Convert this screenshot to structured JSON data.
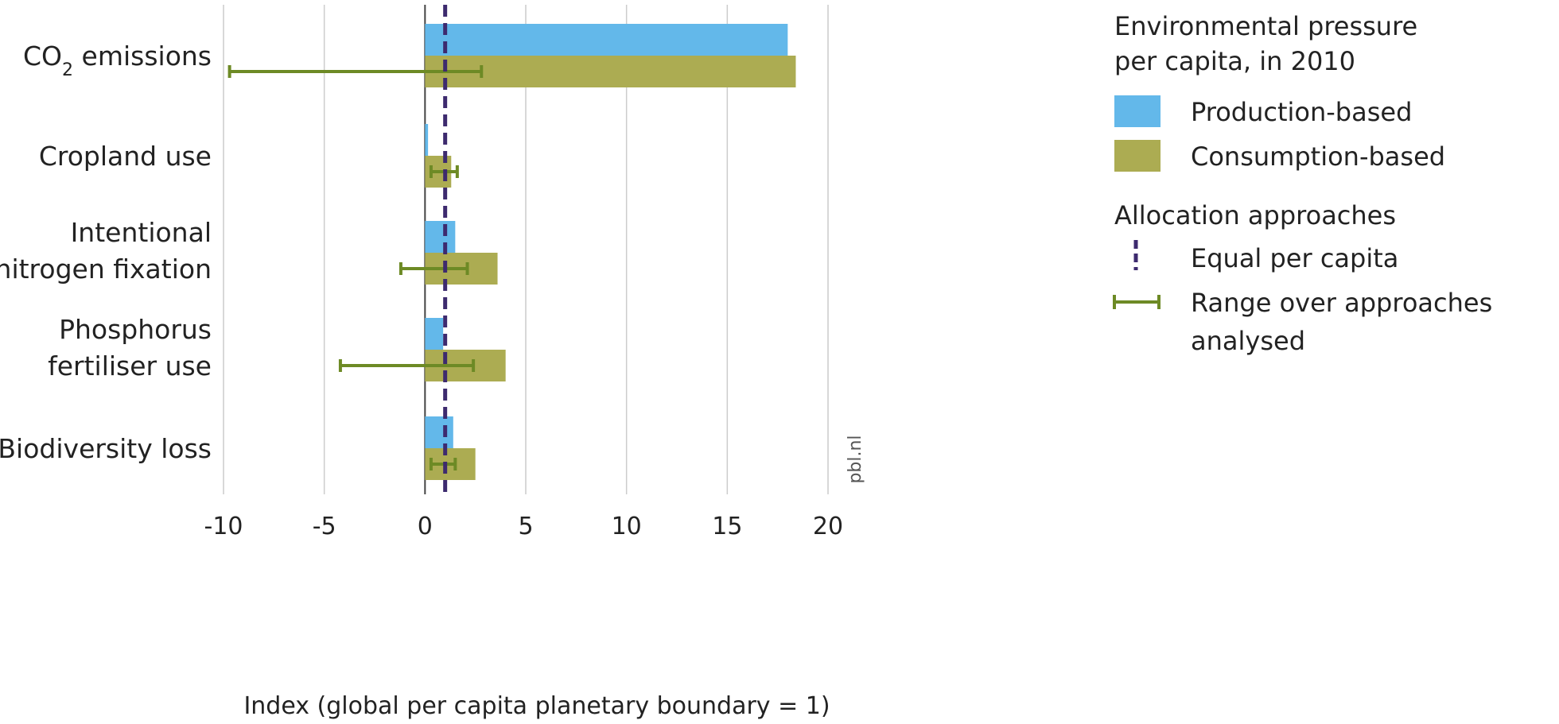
{
  "chart_data": {
    "type": "bar",
    "orientation": "horizontal",
    "categories": [
      [
        "CO",
        "2",
        " emissions"
      ],
      [
        "Cropland use"
      ],
      [
        "Intentional",
        "nitrogen fixation"
      ],
      [
        "Phosphorus",
        "fertiliser use"
      ],
      [
        "Biodiversity loss"
      ]
    ],
    "category_layout": [
      "subscript",
      "single",
      "multi",
      "multi",
      "single"
    ],
    "series": [
      {
        "name": "Production-based",
        "values": [
          18.0,
          0.15,
          1.5,
          0.9,
          1.4
        ]
      },
      {
        "name": "Consumption-based",
        "values": [
          18.4,
          1.3,
          3.6,
          4.0,
          2.5
        ]
      }
    ],
    "ranges": {
      "name": "Range over approaches analysed",
      "values": [
        [
          -9.7,
          2.8
        ],
        [
          0.3,
          1.6
        ],
        [
          -1.2,
          2.1
        ],
        [
          -4.2,
          2.4
        ],
        [
          0.3,
          1.5
        ]
      ]
    },
    "reference_line": {
      "name": "Equal per capita",
      "value": 1
    },
    "xlim": [
      -10,
      20
    ],
    "xticks": [
      -10,
      -5,
      0,
      5,
      10,
      15,
      20
    ],
    "tick_labels": [
      "-10",
      "-5",
      "0",
      "5",
      "10",
      "15",
      "20"
    ],
    "xlabel": "Index (global per capita planetary boundary = 1)",
    "grid": "vertical",
    "legend": {
      "placement": "right",
      "title": [
        "Environmental pressure",
        "per capita, in 2010"
      ],
      "section2_title": "Allocation approaches",
      "range_label": [
        "Range over approaches",
        "analysed"
      ]
    },
    "source": "pbl.nl"
  },
  "colors": {
    "production": "#63b8ea",
    "consumption": "#acac52",
    "range": "#6d8a25",
    "reference": "#3d2a6e",
    "grid": "#cccccc",
    "zero_axis": "#444444"
  }
}
